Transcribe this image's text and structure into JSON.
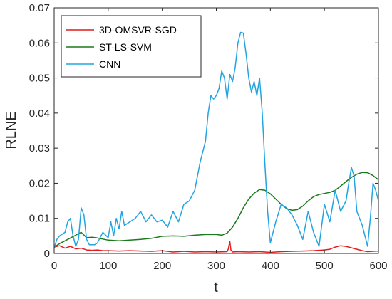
{
  "chart_data": {
    "type": "line",
    "xlabel": "t",
    "ylabel": "RLNE",
    "xlim": [
      0,
      600
    ],
    "ylim": [
      0,
      0.07
    ],
    "xticks": [
      "0",
      "100",
      "200",
      "300",
      "400",
      "500",
      "600"
    ],
    "yticks": [
      "0",
      "0.01",
      "0.02",
      "0.03",
      "0.04",
      "0.05",
      "0.06",
      "0.07"
    ],
    "grid": false,
    "legend_position": "top-left",
    "series": [
      {
        "name": "3D-OMSVR-SGD",
        "color": "#e41a1c",
        "x": [
          0,
          10,
          20,
          30,
          40,
          50,
          60,
          70,
          80,
          90,
          100,
          120,
          140,
          160,
          180,
          200,
          220,
          240,
          260,
          280,
          300,
          320,
          322,
          325,
          327,
          330,
          340,
          360,
          380,
          400,
          420,
          440,
          460,
          480,
          500,
          510,
          520,
          530,
          540,
          550,
          560,
          570,
          580,
          590,
          600
        ],
        "y": [
          0.0018,
          0.0022,
          0.0015,
          0.002,
          0.0013,
          0.0015,
          0.001,
          0.0009,
          0.001,
          0.0008,
          0.0008,
          0.0007,
          0.0008,
          0.0007,
          0.0006,
          0.0008,
          0.0004,
          0.0006,
          0.0004,
          0.0005,
          0.0004,
          0.0005,
          0.0012,
          0.0034,
          0.001,
          0.0004,
          0.0005,
          0.0004,
          0.0005,
          0.0003,
          0.0005,
          0.0006,
          0.0007,
          0.0008,
          0.001,
          0.0012,
          0.0018,
          0.0022,
          0.002,
          0.0016,
          0.0012,
          0.0008,
          0.0005,
          0.0006,
          0.0007
        ]
      },
      {
        "name": "ST-LS-SVM",
        "color": "#1b7a1b",
        "x": [
          0,
          10,
          20,
          30,
          40,
          45,
          50,
          60,
          70,
          80,
          100,
          120,
          140,
          160,
          180,
          200,
          220,
          240,
          260,
          280,
          300,
          310,
          320,
          330,
          340,
          350,
          360,
          370,
          380,
          390,
          400,
          410,
          420,
          430,
          440,
          450,
          460,
          470,
          480,
          490,
          500,
          510,
          520,
          530,
          540,
          550,
          560,
          570,
          580,
          590,
          600
        ],
        "y": [
          0.0018,
          0.0028,
          0.0036,
          0.0044,
          0.0052,
          0.0057,
          0.006,
          0.0045,
          0.0046,
          0.0044,
          0.0038,
          0.0036,
          0.0038,
          0.004,
          0.0043,
          0.0049,
          0.005,
          0.0049,
          0.0052,
          0.0054,
          0.0054,
          0.0052,
          0.0058,
          0.0075,
          0.01,
          0.013,
          0.0155,
          0.0172,
          0.0182,
          0.018,
          0.017,
          0.0155,
          0.014,
          0.0128,
          0.0123,
          0.0125,
          0.0135,
          0.015,
          0.0162,
          0.0168,
          0.0171,
          0.0174,
          0.018,
          0.0192,
          0.0205,
          0.0217,
          0.0226,
          0.0231,
          0.023,
          0.0222,
          0.021
        ]
      },
      {
        "name": "CNN",
        "color": "#23a4e0",
        "x": [
          0,
          5,
          10,
          15,
          20,
          25,
          30,
          35,
          40,
          45,
          50,
          55,
          60,
          65,
          70,
          75,
          80,
          90,
          100,
          105,
          110,
          115,
          120,
          125,
          130,
          140,
          150,
          160,
          170,
          180,
          190,
          200,
          210,
          220,
          230,
          240,
          250,
          260,
          270,
          280,
          285,
          290,
          295,
          300,
          305,
          310,
          315,
          320,
          325,
          330,
          335,
          340,
          345,
          350,
          355,
          360,
          365,
          370,
          375,
          380,
          385,
          390,
          395,
          400,
          410,
          420,
          430,
          440,
          450,
          460,
          470,
          480,
          490,
          500,
          510,
          520,
          530,
          540,
          545,
          550,
          555,
          560,
          570,
          580,
          585,
          590,
          595,
          600
        ],
        "y": [
          0.0015,
          0.004,
          0.005,
          0.0055,
          0.006,
          0.009,
          0.01,
          0.005,
          0.002,
          0.004,
          0.013,
          0.011,
          0.004,
          0.0025,
          0.0025,
          0.0025,
          0.003,
          0.006,
          0.0045,
          0.009,
          0.005,
          0.01,
          0.007,
          0.012,
          0.008,
          0.009,
          0.01,
          0.012,
          0.009,
          0.011,
          0.009,
          0.0095,
          0.0075,
          0.012,
          0.009,
          0.014,
          0.015,
          0.018,
          0.026,
          0.032,
          0.04,
          0.045,
          0.044,
          0.045,
          0.047,
          0.052,
          0.05,
          0.044,
          0.051,
          0.049,
          0.053,
          0.06,
          0.063,
          0.0628,
          0.057,
          0.05,
          0.046,
          0.049,
          0.045,
          0.05,
          0.04,
          0.025,
          0.012,
          0.003,
          0.009,
          0.014,
          0.013,
          0.011,
          0.008,
          0.004,
          0.012,
          0.006,
          0.002,
          0.014,
          0.009,
          0.018,
          0.012,
          0.015,
          0.02,
          0.0245,
          0.022,
          0.012,
          0.008,
          0.002,
          0.01,
          0.02,
          0.018,
          0.015
        ]
      }
    ]
  }
}
